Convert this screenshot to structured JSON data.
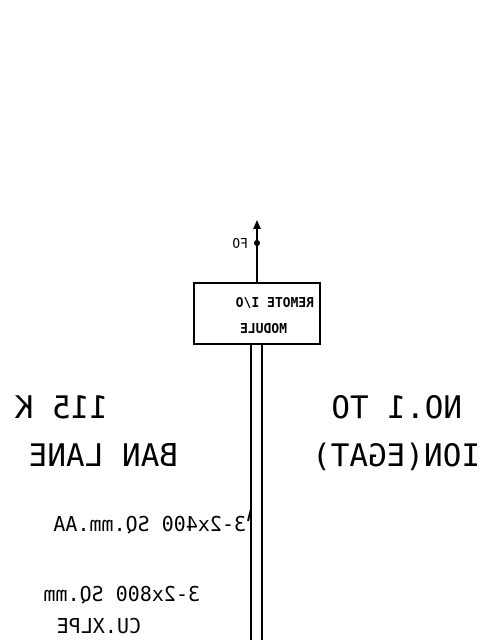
{
  "drawing": {
    "line_color": "#000000",
    "background": "#ffffff",
    "fo_label": "FO",
    "module_line1": "REMOTE I/O",
    "module_line2": "MODULE",
    "left_text_line1": "115 K",
    "left_text_line2": "BAN LANE",
    "right_text_line1": "NO.1 TO",
    "right_text_line2": "ION(EGAT)",
    "cable_1": "3-2x400 SQ.mm.AA",
    "cable_2_line1": "3-2x800 SQ.mm",
    "cable_2_line2": "CU.XLPE"
  }
}
